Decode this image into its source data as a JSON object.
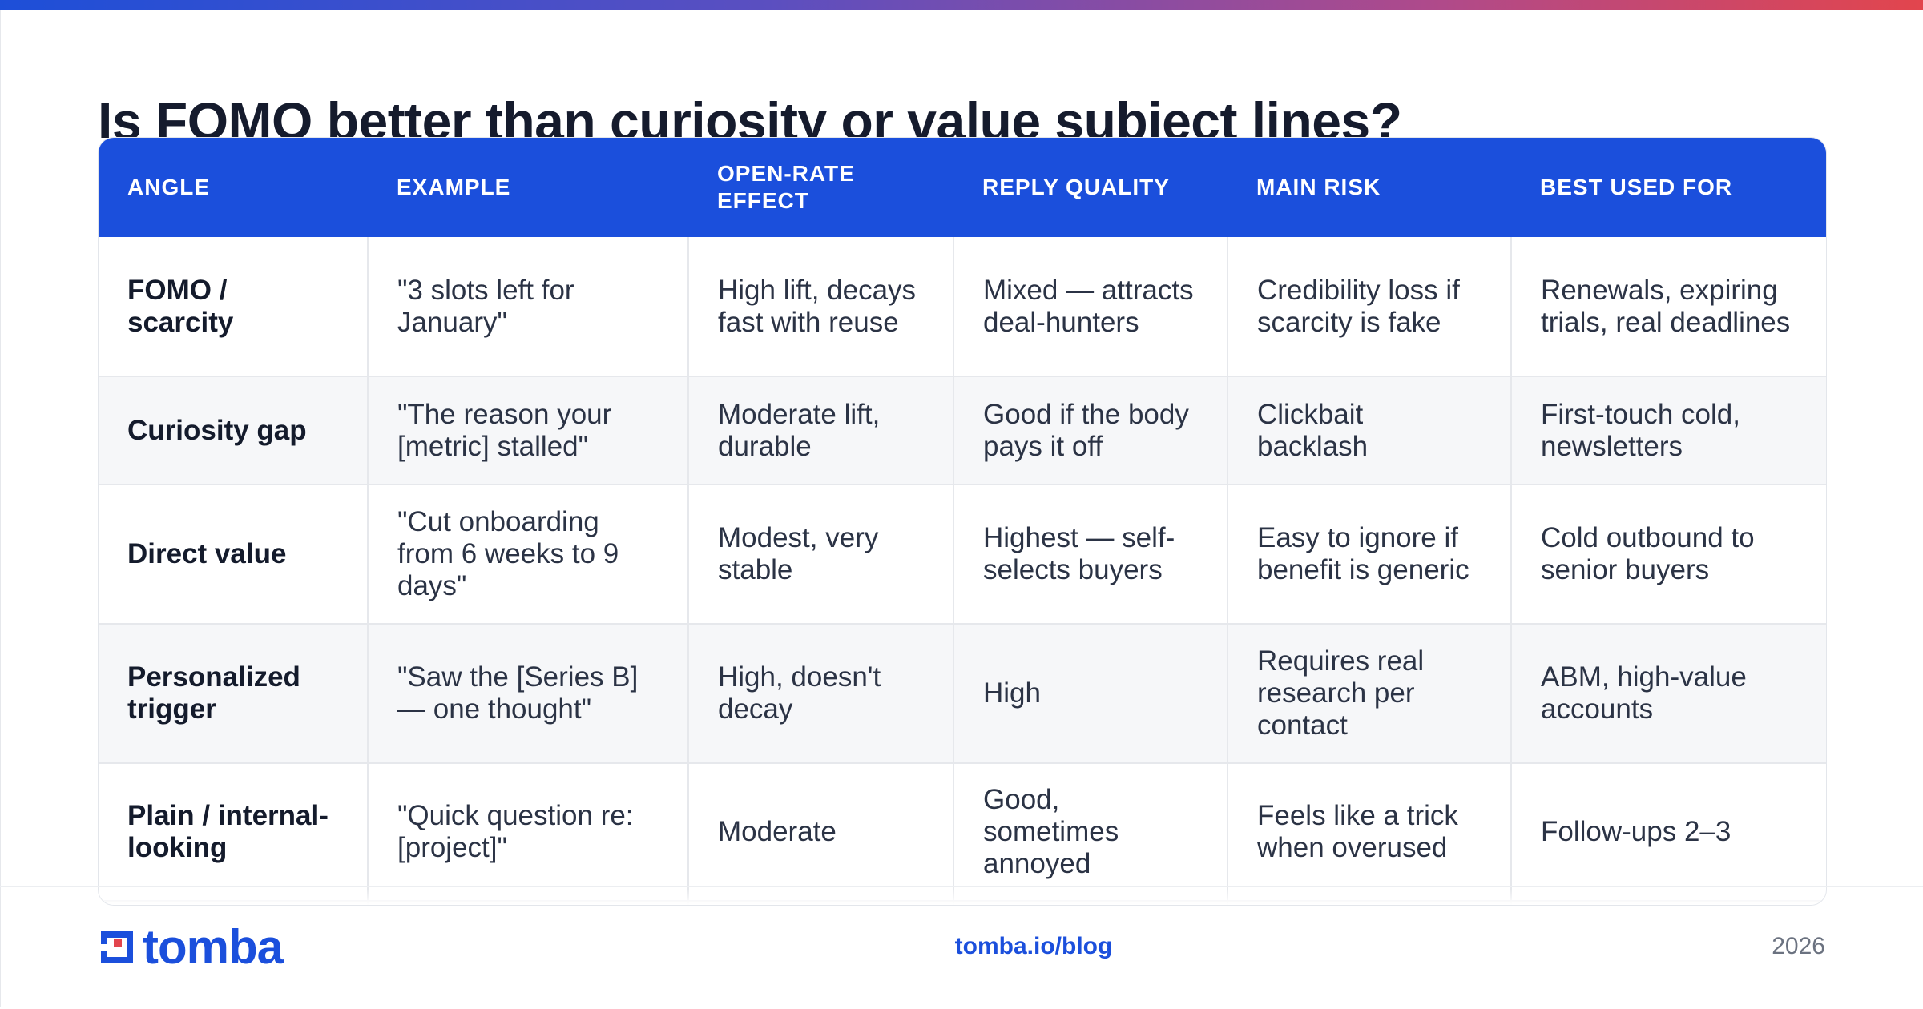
{
  "title": "Is FOMO better than curiosity or value subject lines?",
  "table": {
    "headers": [
      "ANGLE",
      "EXAMPLE",
      "OPEN-RATE EFFECT",
      "REPLY QUALITY",
      "MAIN RISK",
      "BEST USED FOR"
    ],
    "rows": [
      [
        "FOMO / scarcity",
        "\"3 slots left for January\"",
        "High lift, decays fast with reuse",
        "Mixed — attracts deal-hunters",
        "Credibility loss if scarcity is fake",
        "Renewals, expiring trials, real deadlines"
      ],
      [
        "Curiosity gap",
        "\"The reason your [metric] stalled\"",
        "Moderate lift, durable",
        "Good if the body pays it off",
        "Clickbait backlash",
        "First-touch cold, newsletters"
      ],
      [
        "Direct value",
        "\"Cut onboarding from 6 weeks to 9 days\"",
        "Modest, very stable",
        "Highest — self-selects buyers",
        "Easy to ignore if benefit is generic",
        "Cold outbound to senior buyers"
      ],
      [
        "Personalized trigger",
        "\"Saw the [Series B] — one thought\"",
        "High, doesn't decay",
        "High",
        "Requires real research per contact",
        "ABM, high-value accounts"
      ],
      [
        "Plain / internal-looking",
        "\"Quick question re: [project]\"",
        "Moderate",
        "Good, sometimes annoyed",
        "Feels like a trick when overused",
        "Follow-ups 2–3"
      ]
    ]
  },
  "footer": {
    "logo_text": "tomba",
    "link": "tomba.io/blog",
    "year": "2026"
  },
  "colors": {
    "header_bg": "#1b4fdc",
    "brand_blue": "#1b4fdc",
    "brand_red": "#e2454d",
    "alt_row_bg": "#f6f7f9"
  },
  "icons": {
    "logo": "tomba-logo-mark-icon"
  }
}
